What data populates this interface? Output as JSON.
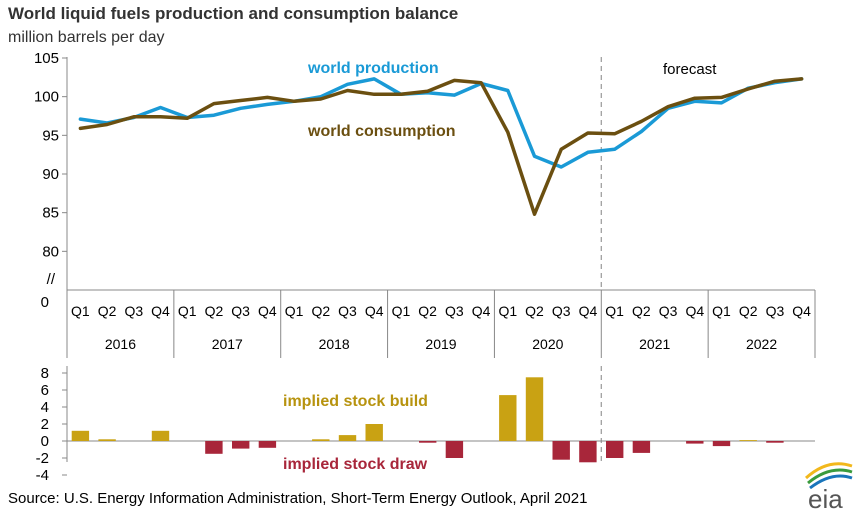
{
  "title": "World liquid fuels production and consumption balance",
  "subtitle": "million barrels per day",
  "source": "Source: U.S. Energy Information Administration, Short-Term Energy Outlook, April 2021",
  "logo_text": "eia",
  "colors": {
    "production": "#1a9ad6",
    "consumption": "#6b4f10",
    "build": "#c9a213",
    "draw": "#a8263a",
    "forecast_line": "#999999",
    "axis": "#888888",
    "annot_build": "#b7930f",
    "annot_draw": "#a8263a"
  },
  "chart_data": [
    {
      "type": "line",
      "ylim": [
        75,
        105
      ],
      "y_ticks": [
        105,
        100,
        95,
        90,
        85,
        80
      ],
      "y_break_label": "//",
      "y_zero_label": "0",
      "categories": [
        "Q1",
        "Q2",
        "Q3",
        "Q4",
        "Q1",
        "Q2",
        "Q3",
        "Q4",
        "Q1",
        "Q2",
        "Q3",
        "Q4",
        "Q1",
        "Q2",
        "Q3",
        "Q4",
        "Q1",
        "Q2",
        "Q3",
        "Q4",
        "Q1",
        "Q2",
        "Q3",
        "Q4",
        "Q1",
        "Q2",
        "Q3",
        "Q4"
      ],
      "years": [
        "2016",
        "2017",
        "2018",
        "2019",
        "2020",
        "2021",
        "2022"
      ],
      "series": [
        {
          "name": "world production",
          "values": [
            97.1,
            96.6,
            97.3,
            98.6,
            97.3,
            97.6,
            98.5,
            99.0,
            99.4,
            100.0,
            101.6,
            102.3,
            100.3,
            100.5,
            100.2,
            101.7,
            100.8,
            92.3,
            90.9,
            92.8,
            93.2,
            95.5,
            98.5,
            99.4,
            99.2,
            101.1,
            101.8,
            102.3
          ]
        },
        {
          "name": "world consumption",
          "values": [
            95.9,
            96.4,
            97.4,
            97.4,
            97.2,
            99.1,
            99.5,
            99.9,
            99.4,
            99.7,
            100.8,
            100.3,
            100.3,
            100.7,
            102.1,
            101.8,
            95.4,
            84.8,
            93.2,
            95.3,
            95.2,
            96.8,
            98.7,
            99.8,
            99.9,
            101.0,
            102.0,
            102.3
          ]
        }
      ],
      "annotations": [
        "world production",
        "world consumption"
      ],
      "forecast_label": "forecast",
      "forecast_start_index": 20
    },
    {
      "type": "bar",
      "ylim": [
        -4,
        8
      ],
      "y_ticks": [
        8,
        6,
        4,
        2,
        0,
        -2,
        -4
      ],
      "categories": [
        "Q1",
        "Q2",
        "Q3",
        "Q4",
        "Q1",
        "Q2",
        "Q3",
        "Q4",
        "Q1",
        "Q2",
        "Q3",
        "Q4",
        "Q1",
        "Q2",
        "Q3",
        "Q4",
        "Q1",
        "Q2",
        "Q3",
        "Q4",
        "Q1",
        "Q2",
        "Q3",
        "Q4",
        "Q1",
        "Q2",
        "Q3",
        "Q4"
      ],
      "values": [
        1.2,
        0.2,
        0.0,
        1.2,
        0.0,
        -1.5,
        -0.9,
        -0.8,
        0.0,
        0.2,
        0.7,
        2.0,
        0.0,
        -0.2,
        -2.0,
        0.0,
        5.4,
        7.5,
        -2.2,
        -2.5,
        -2.0,
        -1.4,
        0.0,
        -0.3,
        -0.6,
        0.1,
        -0.2,
        0.0
      ],
      "annotations": [
        "implied stock  build",
        "implied stock draw"
      ]
    }
  ]
}
